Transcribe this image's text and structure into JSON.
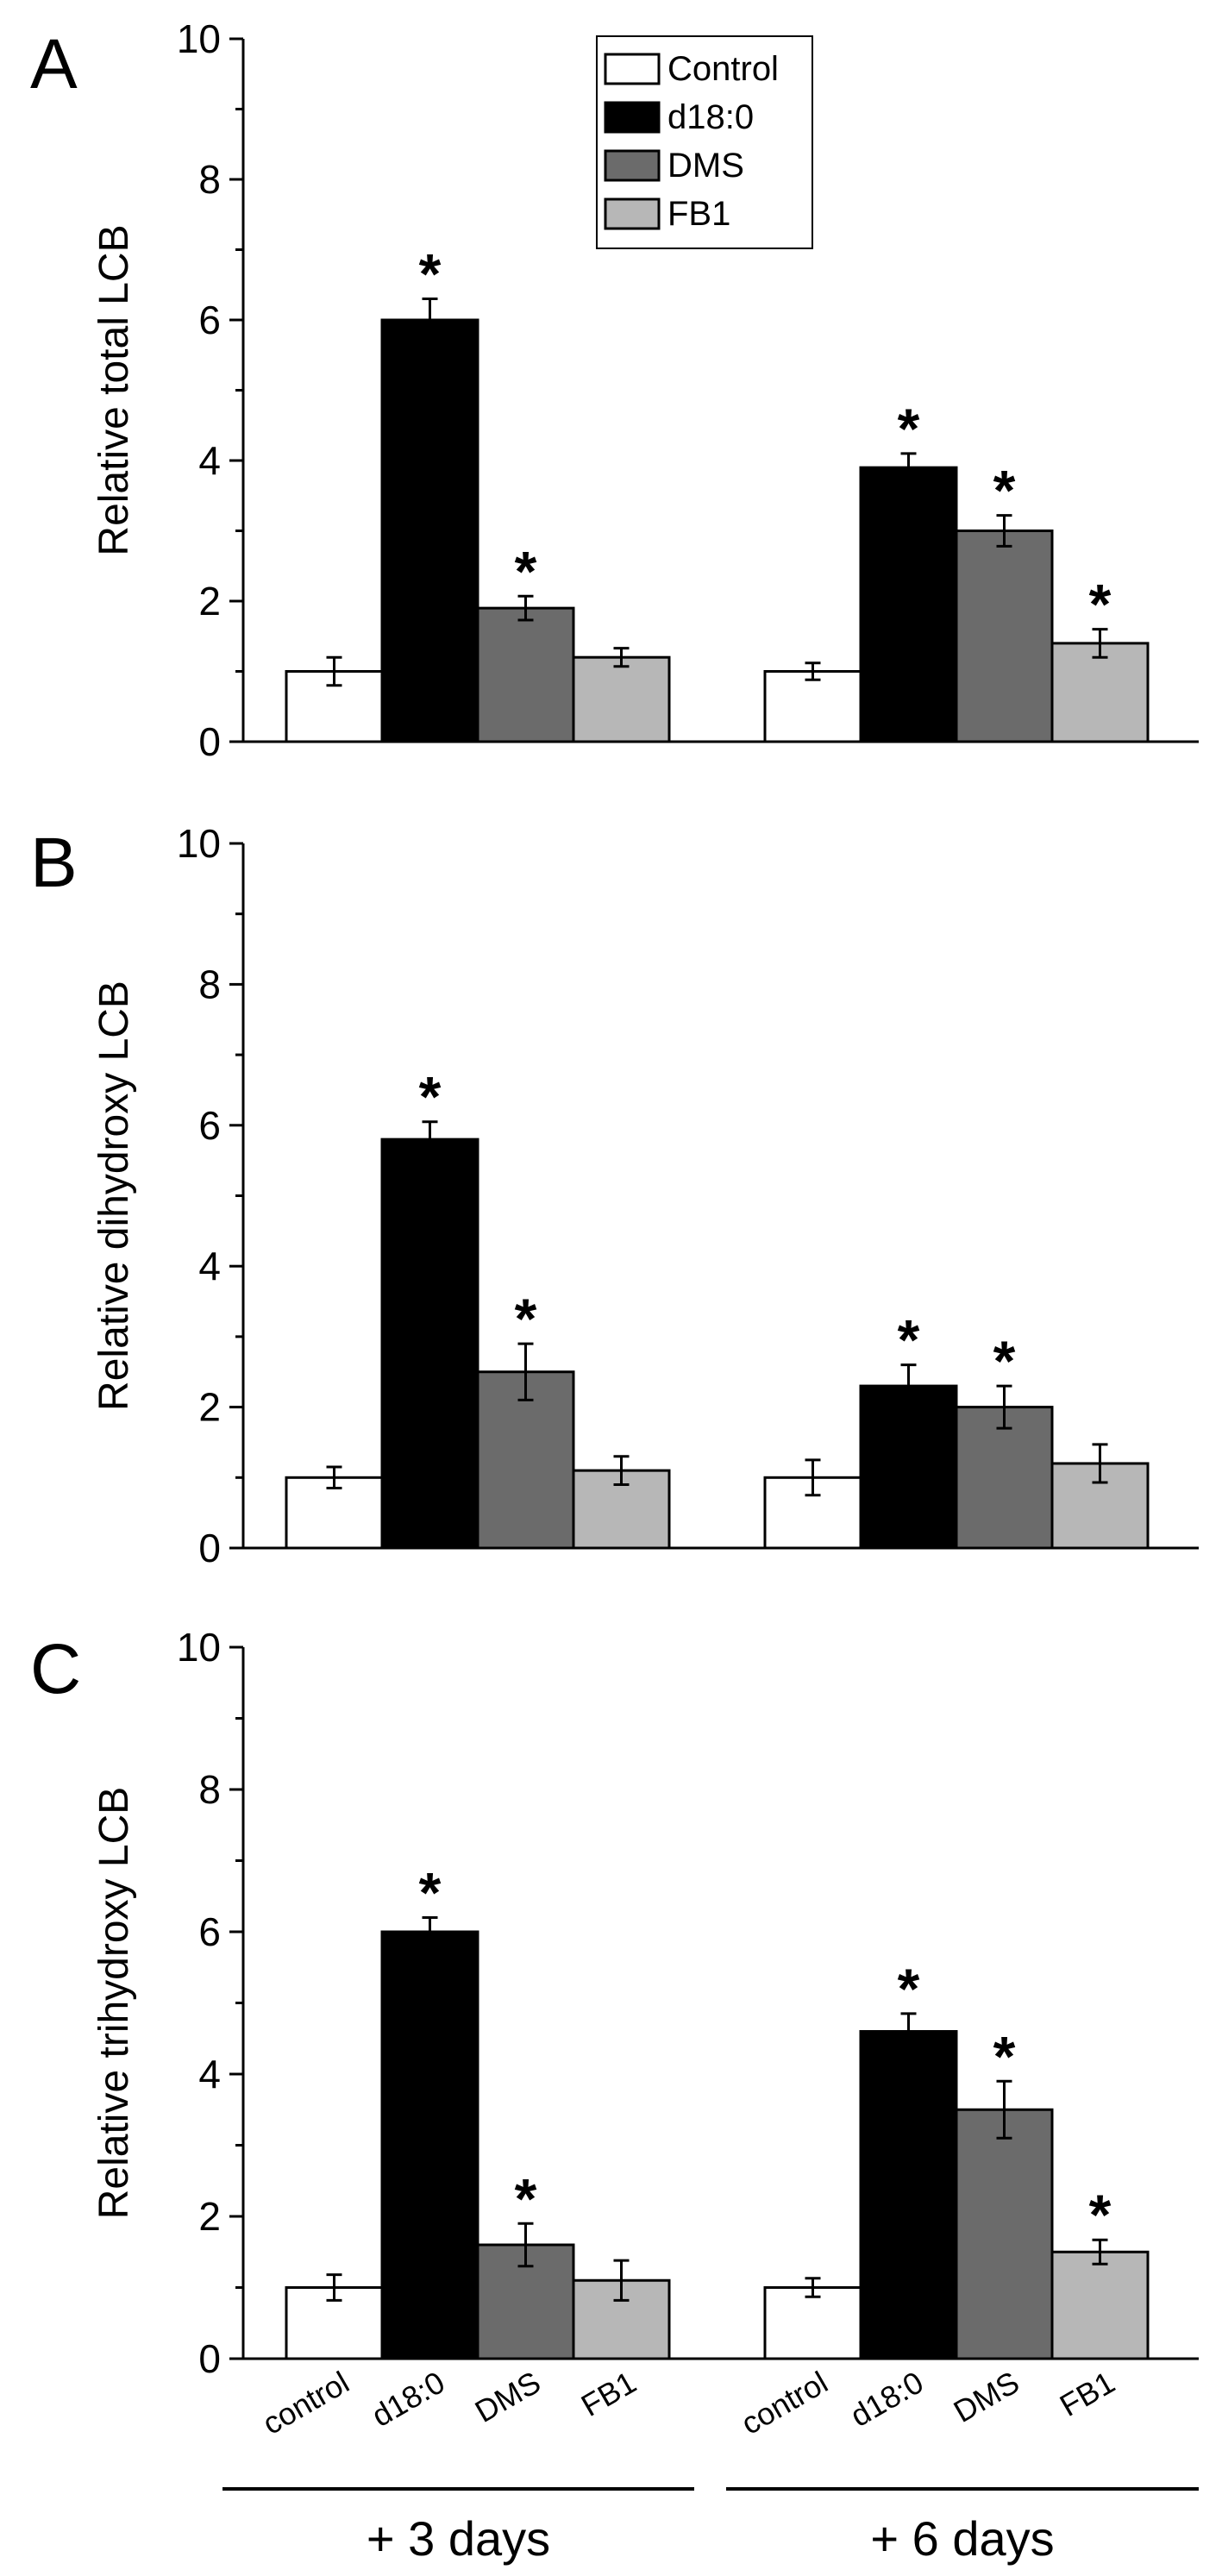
{
  "panel_letters": [
    "A",
    "B",
    "C"
  ],
  "legend": [
    {
      "label": "Control",
      "color": "#ffffff"
    },
    {
      "label": "d18:0",
      "color": "#000000"
    },
    {
      "label": "DMS",
      "color": "#6b6b6b"
    },
    {
      "label": "FB1",
      "color": "#b7b7b7"
    }
  ],
  "significance_marker": "*",
  "bar_tick_labels": [
    "control",
    "d18:0",
    "DMS",
    "FB1"
  ],
  "group_labels": [
    "+ 3 days",
    "+ 6 days"
  ],
  "chart_data": [
    {
      "type": "bar",
      "panel": "A",
      "ylabel": "Relative total LCB",
      "ylim": [
        0,
        10
      ],
      "yticks": [
        0,
        2,
        4,
        6,
        8,
        10
      ],
      "categories": [
        "+ 3 days",
        "+ 6 days"
      ],
      "series": [
        {
          "name": "Control",
          "values": [
            1.0,
            1.0
          ],
          "errors": [
            0.2,
            0.12
          ],
          "significant": [
            false,
            false
          ]
        },
        {
          "name": "d18:0",
          "values": [
            6.0,
            3.9
          ],
          "errors": [
            0.3,
            0.2
          ],
          "significant": [
            true,
            true
          ]
        },
        {
          "name": "DMS",
          "values": [
            1.9,
            3.0
          ],
          "errors": [
            0.17,
            0.22
          ],
          "significant": [
            true,
            true
          ]
        },
        {
          "name": "FB1",
          "values": [
            1.2,
            1.4
          ],
          "errors": [
            0.13,
            0.2
          ],
          "significant": [
            false,
            true
          ]
        }
      ]
    },
    {
      "type": "bar",
      "panel": "B",
      "ylabel": "Relative dihydroxy LCB",
      "ylim": [
        0,
        10
      ],
      "yticks": [
        0,
        2,
        4,
        6,
        8,
        10
      ],
      "categories": [
        "+ 3 days",
        "+ 6 days"
      ],
      "series": [
        {
          "name": "Control",
          "values": [
            1.0,
            1.0
          ],
          "errors": [
            0.15,
            0.25
          ],
          "significant": [
            false,
            false
          ]
        },
        {
          "name": "d18:0",
          "values": [
            5.8,
            2.3
          ],
          "errors": [
            0.25,
            0.3
          ],
          "significant": [
            true,
            true
          ]
        },
        {
          "name": "DMS",
          "values": [
            2.5,
            2.0
          ],
          "errors": [
            0.4,
            0.3
          ],
          "significant": [
            true,
            true
          ]
        },
        {
          "name": "FB1",
          "values": [
            1.1,
            1.2
          ],
          "errors": [
            0.2,
            0.27
          ],
          "significant": [
            false,
            false
          ]
        }
      ]
    },
    {
      "type": "bar",
      "panel": "C",
      "ylabel": "Relative trihydroxy LCB",
      "ylim": [
        0,
        10
      ],
      "yticks": [
        0,
        2,
        4,
        6,
        8,
        10
      ],
      "categories": [
        "+ 3 days",
        "+ 6 days"
      ],
      "series": [
        {
          "name": "Control",
          "values": [
            1.0,
            1.0
          ],
          "errors": [
            0.18,
            0.13
          ],
          "significant": [
            false,
            false
          ]
        },
        {
          "name": "d18:0",
          "values": [
            6.0,
            4.6
          ],
          "errors": [
            0.2,
            0.25
          ],
          "significant": [
            true,
            true
          ]
        },
        {
          "name": "DMS",
          "values": [
            1.6,
            3.5
          ],
          "errors": [
            0.3,
            0.4
          ],
          "significant": [
            true,
            true
          ]
        },
        {
          "name": "FB1",
          "values": [
            1.1,
            1.5
          ],
          "errors": [
            0.28,
            0.17
          ],
          "significant": [
            false,
            true
          ]
        }
      ]
    }
  ]
}
